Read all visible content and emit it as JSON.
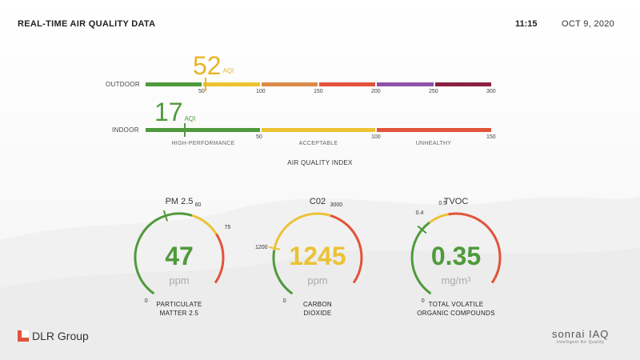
{
  "header": {
    "title": "REAL-TIME AIR QUALITY DATA",
    "time": "11:15",
    "date": "OCT 9, 2020"
  },
  "aqi": {
    "axis_title": "AIR QUALITY INDEX",
    "outdoor": {
      "label": "OUTDOOR",
      "value": "52",
      "unit": "AQI",
      "max": 300,
      "color": "#e7b52a",
      "segments": [
        "#4f9a3c",
        "#ecc234",
        "#db8a4a",
        "#e1533a",
        "#8f52a8",
        "#8c2141"
      ],
      "ticks": [
        "50",
        "100",
        "150",
        "200",
        "250",
        "300"
      ]
    },
    "indoor": {
      "label": "INDOOR",
      "value": "17",
      "unit": "AQI",
      "max": 150,
      "color": "#4f9a3c",
      "segments": [
        "#4f9a3c",
        "#ecc234",
        "#e1533a"
      ],
      "ticks": [
        "50",
        "100",
        "150"
      ],
      "zones": [
        "HIGH-PERFORMANCE",
        "ACCEPTABLE",
        "UNHEALTHY"
      ]
    }
  },
  "gauges": [
    {
      "title": "PM 2.5",
      "value": "47",
      "value_num": 47,
      "unit": "ppm",
      "min_label": "0",
      "ticks": [
        "60",
        "75"
      ],
      "description": [
        "PARTICULATE",
        "MATTER 2.5"
      ],
      "color": "#4f9a3c",
      "arcs": [
        {
          "from": 0,
          "to": 60,
          "color": "#4f9a3c"
        },
        {
          "from": 60,
          "to": 75,
          "color": "#ecc234"
        },
        {
          "from": 75,
          "to": 100,
          "color": "#e1533a"
        }
      ],
      "max": 100
    },
    {
      "title": "C02",
      "value": "1245",
      "value_num": 1245,
      "unit": "ppm",
      "min_label": "0",
      "ticks": [
        "1200",
        "3000"
      ],
      "description": [
        "CARBON",
        "DIOXIDE"
      ],
      "color": "#ecc234",
      "arcs": [
        {
          "from": 0,
          "to": 1200,
          "color": "#4f9a3c"
        },
        {
          "from": 1200,
          "to": 3000,
          "color": "#ecc234"
        },
        {
          "from": 3000,
          "to": 5000,
          "color": "#e1533a"
        }
      ],
      "max": 5000
    },
    {
      "title": "TVOC",
      "value": "0.35",
      "value_num": 0.35,
      "unit": "mg/m³",
      "min_label": "0",
      "ticks": [
        "0.4",
        "0.5"
      ],
      "description": [
        "TOTAL VOLATILE",
        "ORGANIC COMPOUNDS"
      ],
      "color": "#4f9a3c",
      "arcs": [
        {
          "from": 0,
          "to": 0.4,
          "color": "#4f9a3c"
        },
        {
          "from": 0.4,
          "to": 0.5,
          "color": "#ecc234"
        },
        {
          "from": 0.5,
          "to": 1.0,
          "color": "#e1533a"
        }
      ],
      "max": 1.0
    }
  ],
  "footer": {
    "left_logo": "DLR Group",
    "right_logo": "sonrai IAQ",
    "right_tagline": "Intelligent Air Quality",
    "logo_color": "#e1533a"
  }
}
